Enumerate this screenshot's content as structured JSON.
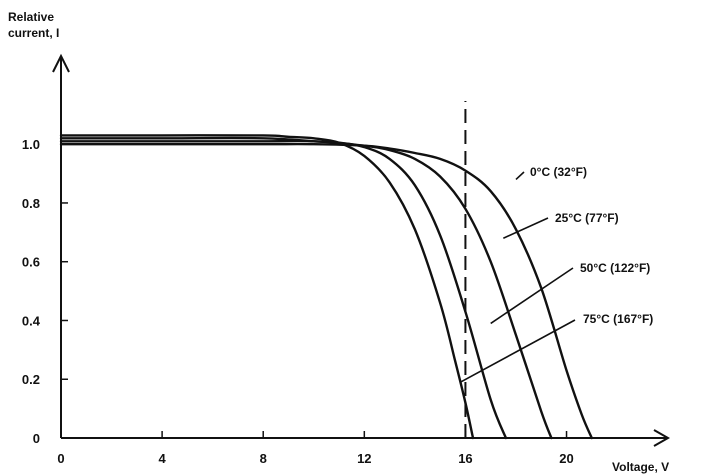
{
  "chart_data": {
    "type": "line",
    "title": "",
    "ylabel_line1": "Relative",
    "ylabel_line2": "current, I",
    "xlabel": "Voltage, V",
    "xlim": [
      0,
      23.5
    ],
    "ylim": [
      0,
      1.13
    ],
    "x_ticks": [
      {
        "value": 0,
        "label": "0"
      },
      {
        "value": 4,
        "label": "4"
      },
      {
        "value": 8,
        "label": "8"
      },
      {
        "value": 12,
        "label": "12"
      },
      {
        "value": 16,
        "label": "16"
      },
      {
        "value": 20,
        "label": "20"
      }
    ],
    "y_ticks": [
      {
        "value": 0,
        "label": "0"
      },
      {
        "value": 0.2,
        "label": "0.2"
      },
      {
        "value": 0.4,
        "label": "0.4"
      },
      {
        "value": 0.6,
        "label": "0.6"
      },
      {
        "value": 0.8,
        "label": "0.8"
      },
      {
        "value": 1.0,
        "label": "1.0"
      }
    ],
    "reference_line": {
      "x": 16.0,
      "style": "dashed"
    },
    "grid": false,
    "line_color": "#111111",
    "series": [
      {
        "name": "0°C (32°F)",
        "x": [
          0,
          4,
          8,
          10,
          12,
          13,
          14,
          15,
          16,
          17,
          18,
          19,
          20,
          20.6,
          21.0
        ],
        "y": [
          1.0,
          1.0,
          1.0,
          1.0,
          0.995,
          0.985,
          0.97,
          0.95,
          0.91,
          0.84,
          0.71,
          0.51,
          0.23,
          0.08,
          0.0
        ],
        "label_anchor": {
          "x": 18.0,
          "y": 0.88
        }
      },
      {
        "name": "25°C (77°F)",
        "x": [
          0,
          4,
          8,
          10,
          12,
          13,
          14,
          15,
          16,
          17,
          18,
          19,
          19.4
        ],
        "y": [
          1.01,
          1.01,
          1.01,
          1.01,
          0.995,
          0.98,
          0.95,
          0.89,
          0.78,
          0.6,
          0.35,
          0.09,
          0.0
        ],
        "label_anchor": {
          "x": 17.5,
          "y": 0.68
        }
      },
      {
        "name": "50°C (122°F)",
        "x": [
          0,
          4,
          8,
          10,
          11,
          12,
          13,
          14,
          15,
          16,
          17,
          17.6
        ],
        "y": [
          1.02,
          1.02,
          1.02,
          1.01,
          1.005,
          0.99,
          0.95,
          0.86,
          0.69,
          0.43,
          0.13,
          0.0
        ],
        "label_anchor": {
          "x": 17.0,
          "y": 0.39
        }
      },
      {
        "name": "75°C (167°F)",
        "x": [
          0,
          4,
          8,
          9,
          10,
          11,
          12,
          13,
          14,
          15,
          15.6,
          16.0,
          16.3
        ],
        "y": [
          1.03,
          1.03,
          1.03,
          1.025,
          1.02,
          1.005,
          0.96,
          0.87,
          0.71,
          0.46,
          0.26,
          0.12,
          0.0
        ],
        "label_anchor": {
          "x": 15.8,
          "y": 0.19
        }
      }
    ],
    "series_label_positions": [
      "upper-right",
      "right",
      "right",
      "lower-right"
    ]
  }
}
